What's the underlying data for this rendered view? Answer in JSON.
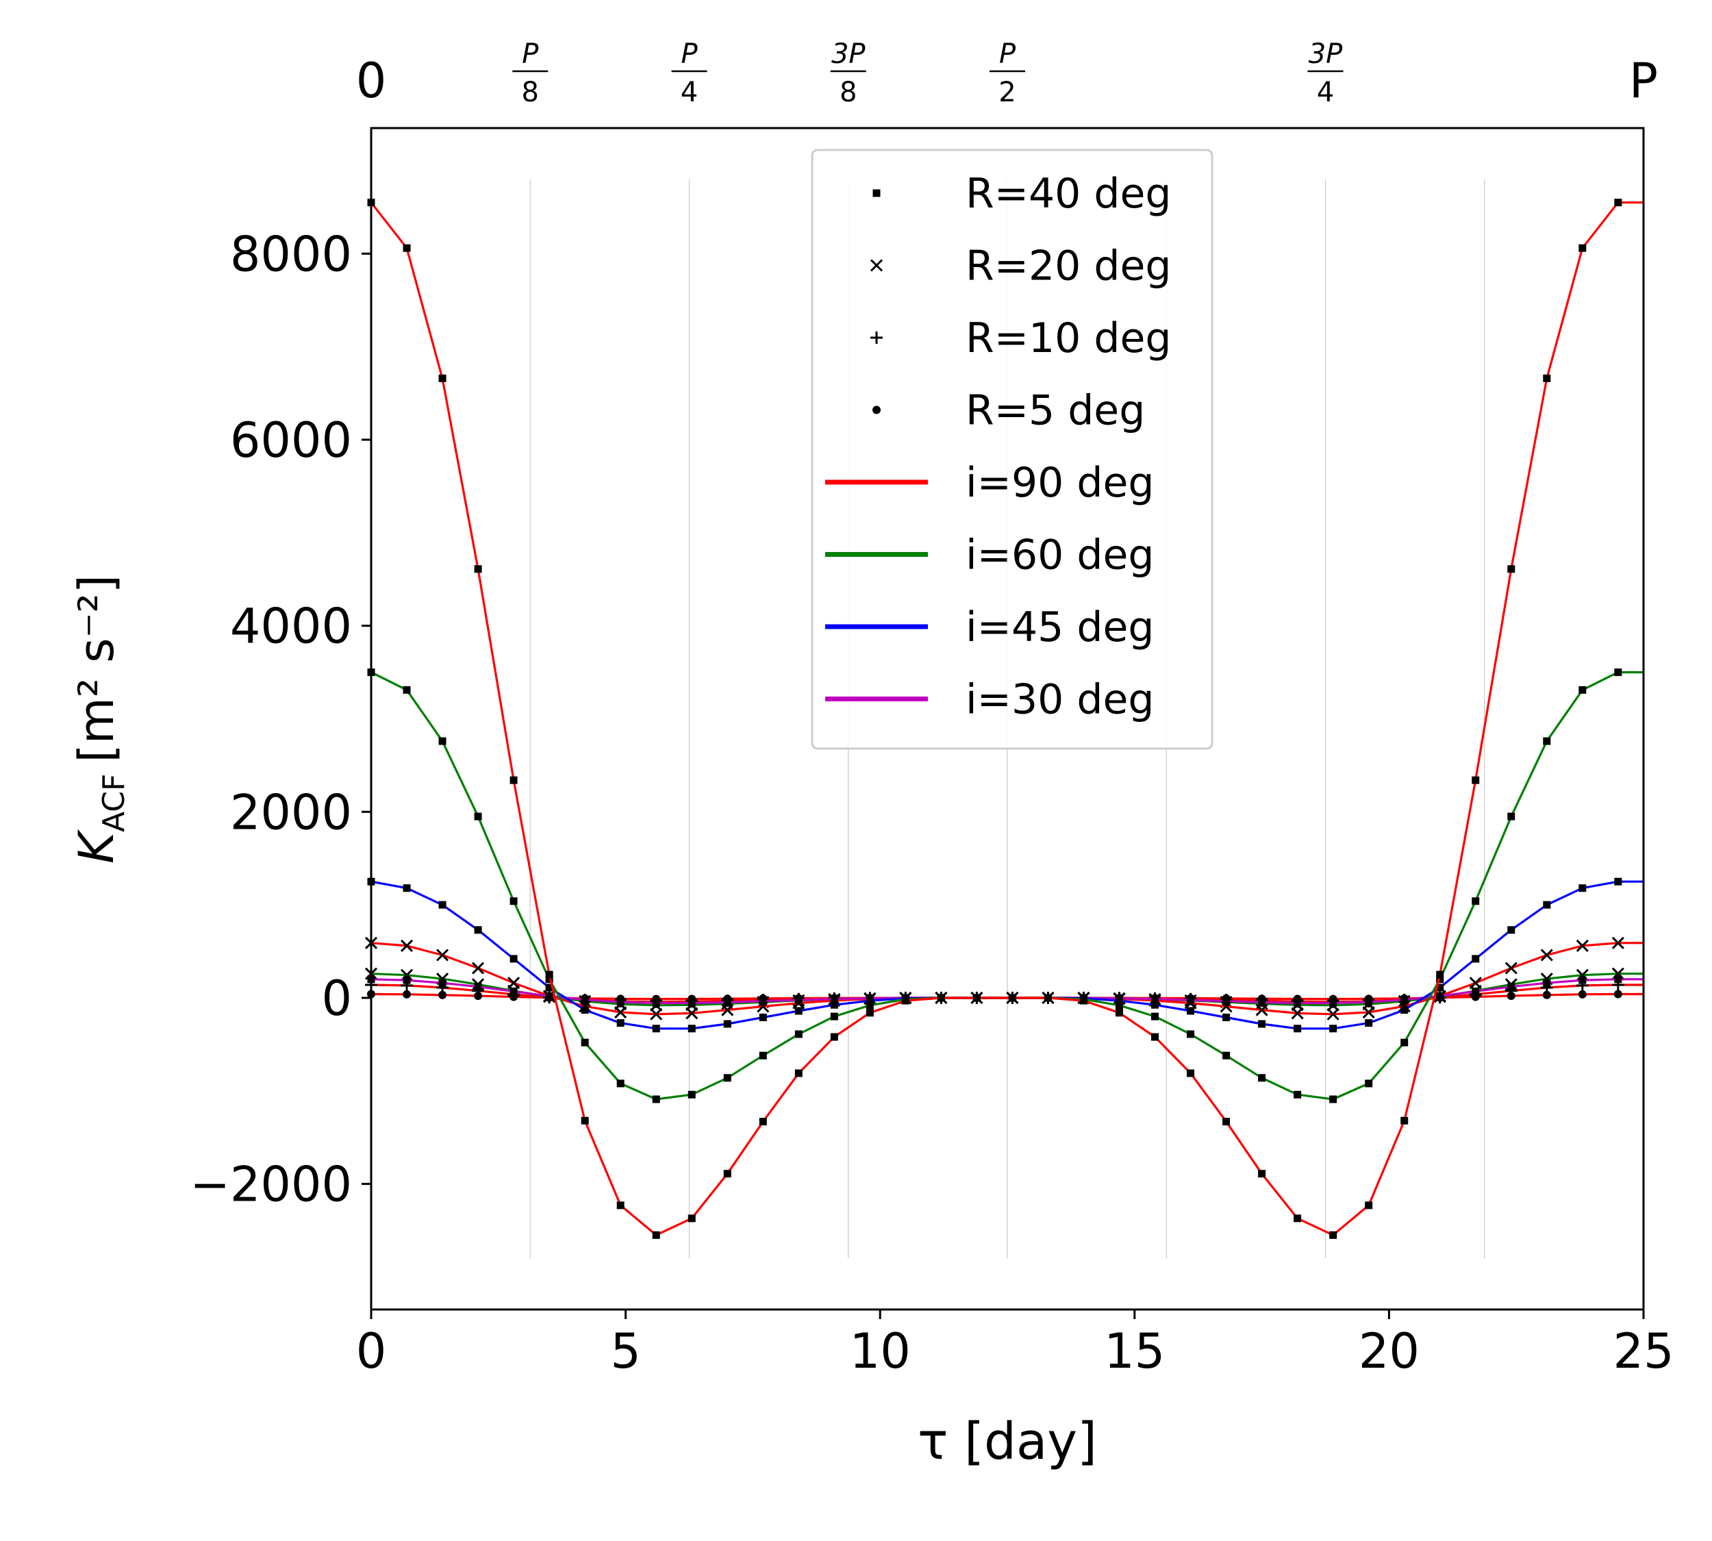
{
  "chart_data": {
    "type": "line",
    "xlabel": "τ [day]",
    "ylabel_main": "K",
    "ylabel_sub": "ACF",
    "ylabel_units": "[m² s⁻²]",
    "xlim": [
      0,
      25
    ],
    "ylim": [
      -3350,
      9350
    ],
    "xticks": [
      0,
      5,
      10,
      15,
      20,
      25
    ],
    "xtick_labels": [
      "0",
      "5",
      "10",
      "15",
      "20",
      "25"
    ],
    "yticks": [
      -2000,
      0,
      2000,
      4000,
      6000,
      8000
    ],
    "ytick_labels": [
      "−2000",
      "0",
      "2000",
      "4000",
      "6000",
      "8000"
    ],
    "y_guides_range": [
      -2800,
      8800
    ],
    "period_days": 25,
    "top_axis": [
      {
        "at": 0,
        "label": "0",
        "style": "plain"
      },
      {
        "at": 0.125,
        "num": "P",
        "den": "8",
        "style": "frac"
      },
      {
        "at": 0.25,
        "num": "P",
        "den": "4",
        "style": "frac"
      },
      {
        "at": 0.375,
        "num": "3P",
        "den": "8",
        "style": "frac"
      },
      {
        "at": 0.5,
        "num": "P",
        "den": "2",
        "style": "frac"
      },
      {
        "at": 0.75,
        "num": "3P",
        "den": "4",
        "style": "frac"
      },
      {
        "at": 1.0,
        "label": "P",
        "style": "plain"
      }
    ],
    "guide_fractions": [
      0.125,
      0.25,
      0.375,
      0.5,
      0.625,
      0.75,
      0.875
    ],
    "x": [
      0,
      0.7,
      1.4,
      2.1,
      2.8,
      3.5,
      4.2,
      4.9,
      5.6,
      6.3,
      7.0,
      7.7,
      8.4,
      9.1,
      9.8,
      10.5,
      11.2,
      11.9,
      12.6,
      13.3,
      14.0,
      14.7,
      15.4,
      16.1,
      16.8,
      17.5,
      18.2,
      18.9,
      19.6,
      20.3,
      21.0,
      21.7,
      22.4,
      23.1,
      23.8,
      24.5,
      25.0
    ],
    "series": [
      {
        "name": "R=40 deg, i=90 deg",
        "color": "#ff0000",
        "marker": "square",
        "values": [
          8550,
          8060,
          6660,
          4610,
          2340,
          250,
          -1320,
          -2230,
          -2550,
          -2370,
          -1890,
          -1330,
          -810,
          -420,
          -160,
          -30,
          0,
          0,
          0,
          0,
          -30,
          -160,
          -420,
          -810,
          -1330,
          -1890,
          -2370,
          -2550,
          -2230,
          -1320,
          250,
          2340,
          4610,
          6660,
          8060,
          8550,
          8550
        ]
      },
      {
        "name": "R=40 deg, i=60 deg",
        "color": "#008000",
        "marker": "square",
        "values": [
          3500,
          3310,
          2760,
          1950,
          1040,
          200,
          -480,
          -920,
          -1090,
          -1040,
          -860,
          -620,
          -390,
          -200,
          -80,
          -15,
          0,
          0,
          0,
          0,
          -15,
          -80,
          -200,
          -390,
          -620,
          -860,
          -1040,
          -1090,
          -920,
          -480,
          200,
          1040,
          1950,
          2760,
          3310,
          3500,
          3500
        ]
      },
      {
        "name": "R=40 deg, i=45 deg",
        "color": "#0000ff",
        "marker": "square",
        "values": [
          1250,
          1180,
          1000,
          730,
          420,
          110,
          -130,
          -270,
          -330,
          -330,
          -280,
          -210,
          -140,
          -75,
          -30,
          -5,
          0,
          0,
          0,
          0,
          -5,
          -30,
          -75,
          -140,
          -210,
          -280,
          -330,
          -330,
          -270,
          -130,
          110,
          420,
          730,
          1000,
          1180,
          1250,
          1250
        ]
      },
      {
        "name": "R=40 deg, i=30 deg",
        "color": "#bf00bf",
        "marker": "square",
        "values": [
          200,
          190,
          160,
          120,
          70,
          20,
          -20,
          -45,
          -55,
          -55,
          -47,
          -35,
          -23,
          -12,
          -5,
          0,
          0,
          0,
          0,
          0,
          0,
          -5,
          -12,
          -23,
          -35,
          -47,
          -55,
          -55,
          -45,
          -20,
          20,
          70,
          120,
          160,
          190,
          200,
          200
        ]
      },
      {
        "name": "R=20 deg, i=90 deg",
        "color": "#ff0000",
        "marker": "x",
        "values": [
          590,
          560,
          460,
          320,
          160,
          20,
          -90,
          -155,
          -175,
          -165,
          -130,
          -92,
          -56,
          -29,
          -11,
          -2,
          0,
          0,
          0,
          0,
          -2,
          -11,
          -29,
          -56,
          -92,
          -130,
          -165,
          -175,
          -155,
          -90,
          20,
          160,
          320,
          460,
          560,
          590,
          590
        ]
      },
      {
        "name": "R=20 deg, i=60 deg",
        "color": "#008000",
        "marker": "x",
        "values": [
          260,
          245,
          205,
          145,
          75,
          12,
          -36,
          -68,
          -80,
          -76,
          -63,
          -45,
          -28,
          -14,
          -5,
          0,
          0,
          0,
          0,
          0,
          0,
          -5,
          -14,
          -28,
          -45,
          -63,
          -76,
          -80,
          -68,
          -36,
          12,
          75,
          145,
          205,
          245,
          260,
          260
        ]
      },
      {
        "name": "R=10 deg, i=90 deg",
        "color": "#ff0000",
        "marker": "plus",
        "values": [
          140,
          133,
          110,
          76,
          38,
          5,
          -22,
          -37,
          -42,
          -39,
          -31,
          -22,
          -13,
          -7,
          -2,
          0,
          0,
          0,
          0,
          0,
          0,
          -2,
          -7,
          -13,
          -22,
          -31,
          -39,
          -42,
          -37,
          -22,
          5,
          38,
          76,
          110,
          133,
          140,
          140
        ]
      },
      {
        "name": "R=5 deg, i=90 deg",
        "color": "#ff0000",
        "marker": "dot",
        "values": [
          40,
          38,
          31,
          22,
          11,
          2,
          -6,
          -10,
          -12,
          -11,
          -9,
          -6,
          -4,
          -2,
          -1,
          0,
          0,
          0,
          0,
          0,
          0,
          -1,
          -2,
          -4,
          -6,
          -9,
          -11,
          -12,
          -10,
          -6,
          2,
          11,
          22,
          31,
          38,
          40,
          40
        ]
      }
    ],
    "legend": {
      "placement": "top-center",
      "entries": [
        {
          "label": "R=40 deg",
          "kind": "marker",
          "marker": "square"
        },
        {
          "label": "R=20 deg",
          "kind": "marker",
          "marker": "x"
        },
        {
          "label": "R=10 deg",
          "kind": "marker",
          "marker": "plus"
        },
        {
          "label": "R=5 deg",
          "kind": "marker",
          "marker": "dot"
        },
        {
          "label": "i=90 deg",
          "kind": "line",
          "color": "#ff0000"
        },
        {
          "label": "i=60 deg",
          "kind": "line",
          "color": "#008000"
        },
        {
          "label": "i=45 deg",
          "kind": "line",
          "color": "#0000ff"
        },
        {
          "label": "i=30 deg",
          "kind": "line",
          "color": "#bf00bf"
        }
      ]
    }
  }
}
